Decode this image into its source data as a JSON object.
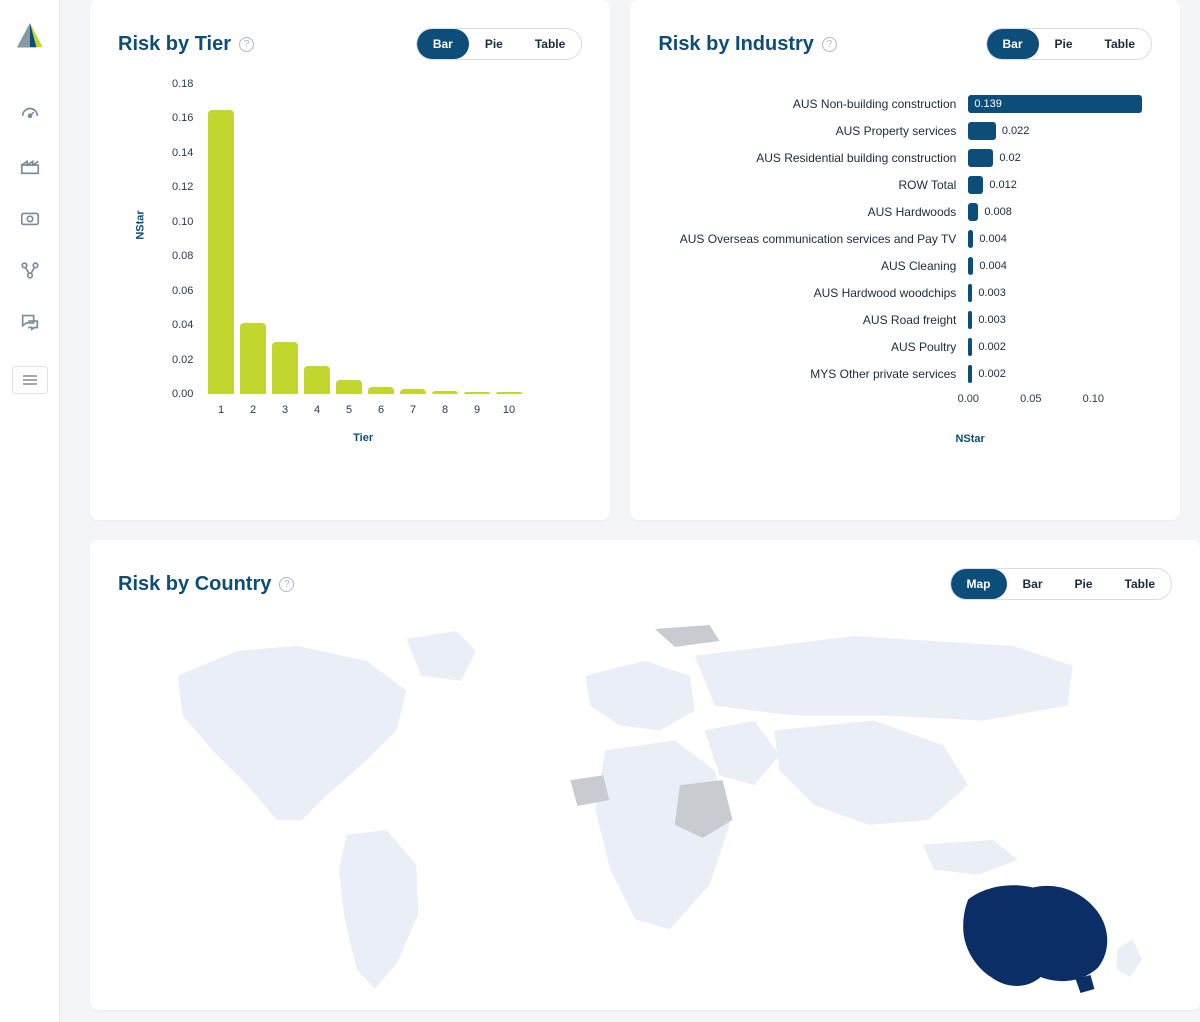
{
  "colors": {
    "page_bg": "#f4f5f7",
    "card_bg": "#ffffff",
    "title": "#0d4d7a",
    "toggle_active_bg": "#0d4d7a",
    "toggle_active_fg": "#ffffff",
    "toggle_fg": "#1a2b3c",
    "nav_icon": "#7a8a99",
    "axis_text": "#2a3a4a"
  },
  "sidebar": {
    "nav_items": [
      {
        "name": "dashboard-icon"
      },
      {
        "name": "industry-icon"
      },
      {
        "name": "inbox-icon"
      },
      {
        "name": "connections-icon"
      },
      {
        "name": "chat-icon"
      }
    ]
  },
  "tier_card": {
    "title": "Risk by Tier",
    "view_options": [
      "Bar",
      "Pie",
      "Table"
    ],
    "active_view": "Bar",
    "chart": {
      "type": "bar",
      "ylabel": "NStar",
      "xlabel": "Tier",
      "categories": [
        "1",
        "2",
        "3",
        "4",
        "5",
        "6",
        "7",
        "8",
        "9",
        "10"
      ],
      "values": [
        0.165,
        0.041,
        0.03,
        0.016,
        0.008,
        0.004,
        0.003,
        0.002,
        0.001,
        0.001
      ],
      "bar_color": "#c2d62e",
      "ylim": [
        0,
        0.18
      ],
      "ytick_step": 0.02,
      "yticks": [
        "0.00",
        "0.02",
        "0.04",
        "0.06",
        "0.08",
        "0.10",
        "0.12",
        "0.14",
        "0.16",
        "0.18"
      ],
      "title_fontsize": 20,
      "label_fontsize": 11,
      "background_color": "#ffffff"
    }
  },
  "industry_card": {
    "title": "Risk by Industry",
    "view_options": [
      "Bar",
      "Pie",
      "Table"
    ],
    "active_view": "Bar",
    "chart": {
      "type": "bar-horizontal",
      "xlabel": "NStar",
      "bar_color": "#0d4d7a",
      "xlim": [
        0,
        0.14
      ],
      "xticks": [
        {
          "v": 0,
          "l": "0.00"
        },
        {
          "v": 0.05,
          "l": "0.05"
        },
        {
          "v": 0.1,
          "l": "0.10"
        }
      ],
      "rows": [
        {
          "label": "AUS Non-building construction",
          "value": 0.139,
          "display": "0.139",
          "inside": true
        },
        {
          "label": "AUS Property services",
          "value": 0.022,
          "display": "0.022",
          "inside": false
        },
        {
          "label": "AUS Residential building construction",
          "value": 0.02,
          "display": "0.02",
          "inside": false
        },
        {
          "label": "ROW Total",
          "value": 0.012,
          "display": "0.012",
          "inside": false
        },
        {
          "label": "AUS Hardwoods",
          "value": 0.008,
          "display": "0.008",
          "inside": false
        },
        {
          "label": "AUS Overseas communication services and Pay TV",
          "value": 0.004,
          "display": "0.004",
          "inside": false
        },
        {
          "label": "AUS Cleaning",
          "value": 0.004,
          "display": "0.004",
          "inside": false
        },
        {
          "label": "AUS Hardwood woodchips",
          "value": 0.003,
          "display": "0.003",
          "inside": false
        },
        {
          "label": "AUS Road freight",
          "value": 0.003,
          "display": "0.003",
          "inside": false
        },
        {
          "label": "AUS Poultry",
          "value": 0.002,
          "display": "0.002",
          "inside": false
        },
        {
          "label": "MYS Other private services",
          "value": 0.002,
          "display": "0.002",
          "inside": false
        }
      ],
      "background_color": "#ffffff"
    }
  },
  "country_card": {
    "title": "Risk by Country",
    "view_options": [
      "Map",
      "Bar",
      "Pie",
      "Table"
    ],
    "active_view": "Map",
    "map": {
      "base_color": "#e9eef7",
      "nodata_color": "#c8ccd0",
      "highlight_color": "#0b2e66",
      "highlighted": [
        "Australia"
      ]
    }
  }
}
